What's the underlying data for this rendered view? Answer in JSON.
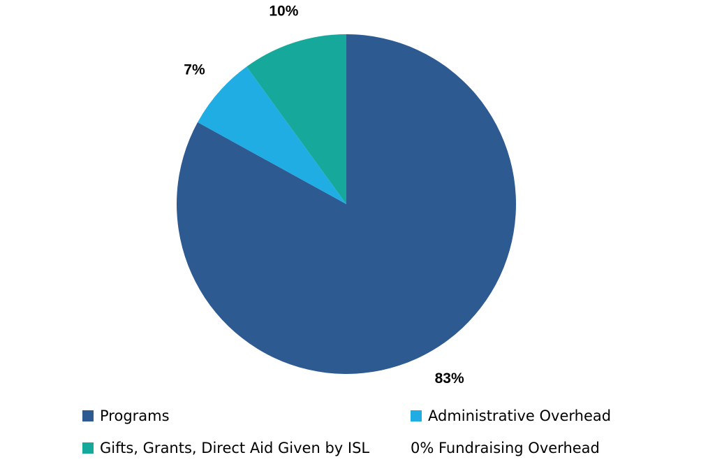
{
  "chart_data": {
    "type": "pie",
    "title": "",
    "slices": [
      {
        "name": "Programs",
        "value": 83,
        "label": "83%",
        "color": "#2e5a92"
      },
      {
        "name": "Administrative Overhead",
        "value": 7,
        "label": "7%",
        "color": "#1fade4"
      },
      {
        "name": "Gifts, Grants, Direct Aid Given by ISL",
        "value": 10,
        "label": "10%",
        "color": "#17a89c"
      }
    ],
    "legend": {
      "placement": "bottom",
      "items": [
        {
          "text": "Programs",
          "color": "#2e5a92",
          "has_swatch": true
        },
        {
          "text": "Administrative Overhead",
          "color": "#1fade4",
          "has_swatch": true
        },
        {
          "text": "Gifts, Grants, Direct Aid Given by ISL",
          "color": "#17a89c",
          "has_swatch": true
        },
        {
          "text": "0% Fundraising Overhead",
          "color": "",
          "has_swatch": false
        }
      ]
    }
  }
}
